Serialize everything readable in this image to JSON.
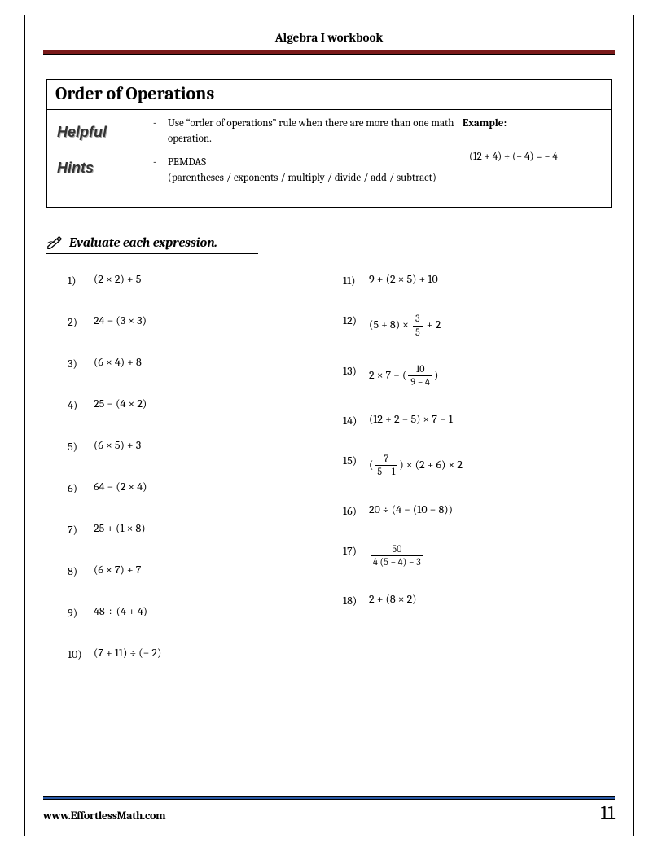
{
  "header": {
    "title": "Algebra I workbook"
  },
  "colors": {
    "header_rule": "#7a1a1a",
    "footer_rule": "#2a5aa8",
    "text": "#000000",
    "background": "#ffffff"
  },
  "topic": {
    "title": "Order of Operations",
    "hints_label_1": "Helpful",
    "hints_label_2": "Hints",
    "hints": [
      "Use “order of operations” rule when there are more than one math operation.",
      "PEMDAS\n(parentheses / exponents / multiply / divide / add / subtract)"
    ],
    "example_label": "Example:",
    "example_expr": "(12 + 4) ÷ (− 4) = − 4"
  },
  "instruction": "Evaluate each expression.",
  "problems_left": [
    {
      "n": "1)",
      "expr": "(2 × 2) + 5"
    },
    {
      "n": "2)",
      "expr": " 24 − (3 × 3)"
    },
    {
      "n": "3)",
      "expr": "(6 × 4) + 8"
    },
    {
      "n": "4)",
      "expr": " 25 − (4 × 2)"
    },
    {
      "n": "5)",
      "expr": "(6 × 5) + 3"
    },
    {
      "n": "6)",
      "expr": " 64 − (2 × 4)"
    },
    {
      "n": "7)",
      "expr": " 25 + (1 × 8)"
    },
    {
      "n": "8)",
      "expr": "(6 × 7) + 7"
    },
    {
      "n": "9)",
      "expr": " 48 ÷ (4 + 4)"
    },
    {
      "n": "10)",
      "expr": "(7 + 11) ÷ (− 2)"
    }
  ],
  "problems_right": [
    {
      "n": "11)",
      "html": "9 + (2 × 5) + 10"
    },
    {
      "n": "12)",
      "html": "(5 + 8) × <span class='frac'><span class='num'>3</span><span class='den'>5</span></span> + 2"
    },
    {
      "n": "13)",
      "html": "2 × 7 −  (<span class='frac'><span class='num'>10</span><span class='den'>9 − 4</span></span>)"
    },
    {
      "n": "14)",
      "html": "(12 + 2 − 5) × 7 − 1"
    },
    {
      "n": "15)",
      "html": "(<span class='frac'><span class='num'>7</span><span class='den'>5 − 1</span></span>) × (2 + 6) × 2"
    },
    {
      "n": "16)",
      "html": "20 ÷ (4 − (10 − 8))"
    },
    {
      "n": "17)",
      "html": "<span class='frac'><span class='num'>50</span><span class='den'>4 (5 − 4) − 3</span></span>"
    },
    {
      "n": "18)",
      "html": "2 + (8 × 2)"
    }
  ],
  "footer": {
    "site": "www.EffortlessMath.com",
    "page": "11"
  }
}
